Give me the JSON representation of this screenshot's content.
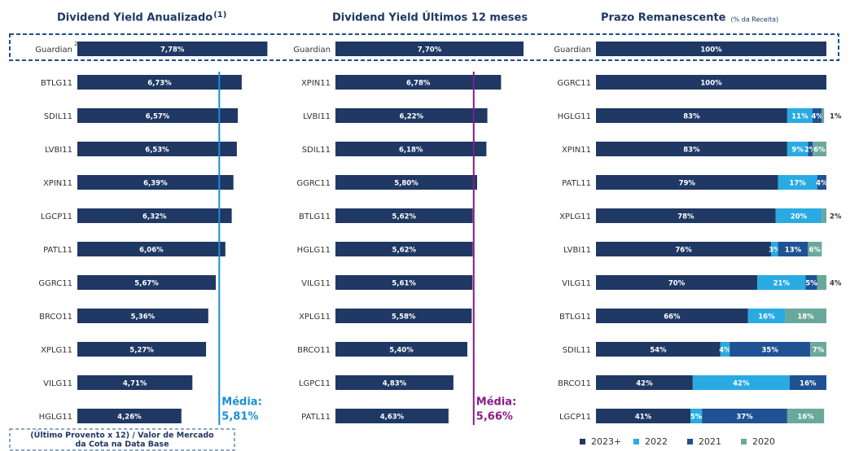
{
  "chart_data": [
    {
      "type": "bar",
      "title": "Dividend Yield Anualizado",
      "title_note": "(1)",
      "categories": [
        "Guardian",
        "BTLG11",
        "SDIL11",
        "LVBI11",
        "XPIN11",
        "LGCP11",
        "PATL11",
        "GGRC11",
        "BRCO11",
        "XPLG11",
        "VILG11",
        "HGLG11"
      ],
      "category_notes": [
        "2",
        null,
        null,
        null,
        null,
        null,
        null,
        null,
        null,
        null,
        null,
        null
      ],
      "values": [
        7.78,
        6.73,
        6.57,
        6.53,
        6.39,
        6.32,
        6.06,
        5.67,
        5.36,
        5.27,
        4.71,
        4.26
      ],
      "value_labels": [
        "7,78%",
        "6,73%",
        "6,57%",
        "6,53%",
        "6,39%",
        "6,32%",
        "6,06%",
        "5,67%",
        "5,36%",
        "5,27%",
        "4,71%",
        "4,26%"
      ],
      "color": "#1f3864",
      "mean": {
        "value": 5.81,
        "label": "Média:",
        "value_label": "5,81%",
        "color": "#1a8fd6"
      },
      "footnote": [
        "(Último Provento x 12) / Valor de Mercado",
        "da Cota na Data Base"
      ]
    },
    {
      "type": "bar",
      "title": "Dividend Yield Últimos 12 meses",
      "categories": [
        "Guardian",
        "XPIN11",
        "LVBI11",
        "SDIL11",
        "GGRC11",
        "BTLG11",
        "HGLG11",
        "VILG11",
        "XPLG11",
        "BRCO11",
        "LGPC11",
        "PATL11"
      ],
      "values": [
        7.7,
        6.78,
        6.22,
        6.18,
        5.8,
        5.62,
        5.62,
        5.61,
        5.58,
        5.4,
        4.83,
        4.63
      ],
      "value_labels": [
        "7,70%",
        "6,78%",
        "6,22%",
        "6,18%",
        "5,80%",
        "5,62%",
        "5,62%",
        "5,61%",
        "5,58%",
        "5,40%",
        "4,83%",
        "4,63%"
      ],
      "color": "#1f3864",
      "mean": {
        "value": 5.66,
        "label": "Média:",
        "value_label": "5,66%",
        "color": "#8b1a8b"
      }
    },
    {
      "type": "stacked_bar",
      "title": "Prazo Remanescente",
      "subtitle": "(% da Receita)",
      "categories": [
        "Guardian",
        "GGRC11",
        "HGLG11",
        "XPIN11",
        "PATL11",
        "XPLG11",
        "LVBI11",
        "VILG11",
        "BTLG11",
        "SDIL11",
        "BRCO11",
        "LGCP11"
      ],
      "series": [
        {
          "name": "2023+",
          "color": "#1f3864",
          "values": [
            100,
            100,
            83,
            83,
            79,
            78,
            76,
            70,
            66,
            54,
            42,
            41
          ],
          "value_labels": [
            "100%",
            "100%",
            "83%",
            "83%",
            "79%",
            "78%",
            "76%",
            "70%",
            "66%",
            "54%",
            "42%",
            "41%"
          ]
        },
        {
          "name": "2022",
          "color": "#29abe2",
          "values": [
            null,
            null,
            11,
            9,
            17,
            20,
            3,
            21,
            16,
            4,
            42,
            5
          ],
          "value_labels": [
            null,
            null,
            "11%",
            "9%",
            "17%",
            "20%",
            "3%",
            "21%",
            "16%",
            "4%",
            "42%",
            "5%"
          ]
        },
        {
          "name": "2021",
          "color": "#1f5193",
          "values": [
            null,
            null,
            4,
            2,
            4,
            null,
            13,
            5,
            null,
            35,
            16,
            37
          ],
          "value_labels": [
            null,
            null,
            "4%",
            "2%",
            "4%",
            null,
            "13%",
            "5%",
            null,
            "35%",
            "16%",
            "37%"
          ]
        },
        {
          "name": "2020",
          "color": "#6aa89c",
          "values": [
            null,
            null,
            1,
            6,
            null,
            2,
            6,
            4,
            18,
            7,
            null,
            16
          ],
          "value_labels": [
            null,
            null,
            "1%",
            "6%",
            null,
            "2%",
            "6%",
            "4%",
            "18%",
            "7%",
            null,
            "16%"
          ]
        }
      ]
    }
  ]
}
